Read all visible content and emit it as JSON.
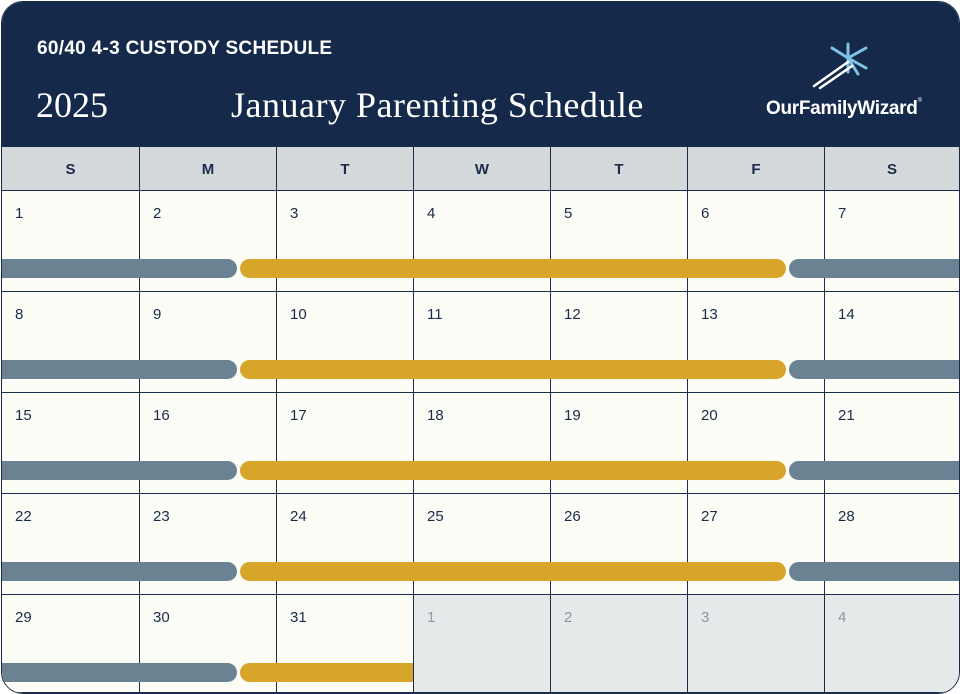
{
  "header": {
    "subtitle": "60/40 4-3 CUSTODY SCHEDULE",
    "year": "2025",
    "title": "January Parenting Schedule",
    "logo_text": "OurFamilyWizard",
    "logo_icon": "ofw-star-icon"
  },
  "weekdays": [
    "S",
    "M",
    "T",
    "W",
    "T",
    "F",
    "S"
  ],
  "weeks": [
    [
      "1",
      "2",
      "3",
      "4",
      "5",
      "6",
      "7"
    ],
    [
      "8",
      "9",
      "10",
      "11",
      "12",
      "13",
      "14"
    ],
    [
      "15",
      "16",
      "17",
      "18",
      "19",
      "20",
      "21"
    ],
    [
      "22",
      "23",
      "24",
      "25",
      "26",
      "27",
      "28"
    ],
    [
      "29",
      "30",
      "31",
      "1",
      "2",
      "3",
      "4"
    ]
  ],
  "other_month_days": [
    "1",
    "2",
    "3",
    "4"
  ],
  "colors": {
    "header_bg": "#152a4a",
    "parent_a": "#6a8292",
    "parent_b": "#d6a52a",
    "weekday_bg": "#d4d9dc",
    "other_month_bg": "#e6e9e9",
    "grid_line": "#1b2b4a"
  }
}
